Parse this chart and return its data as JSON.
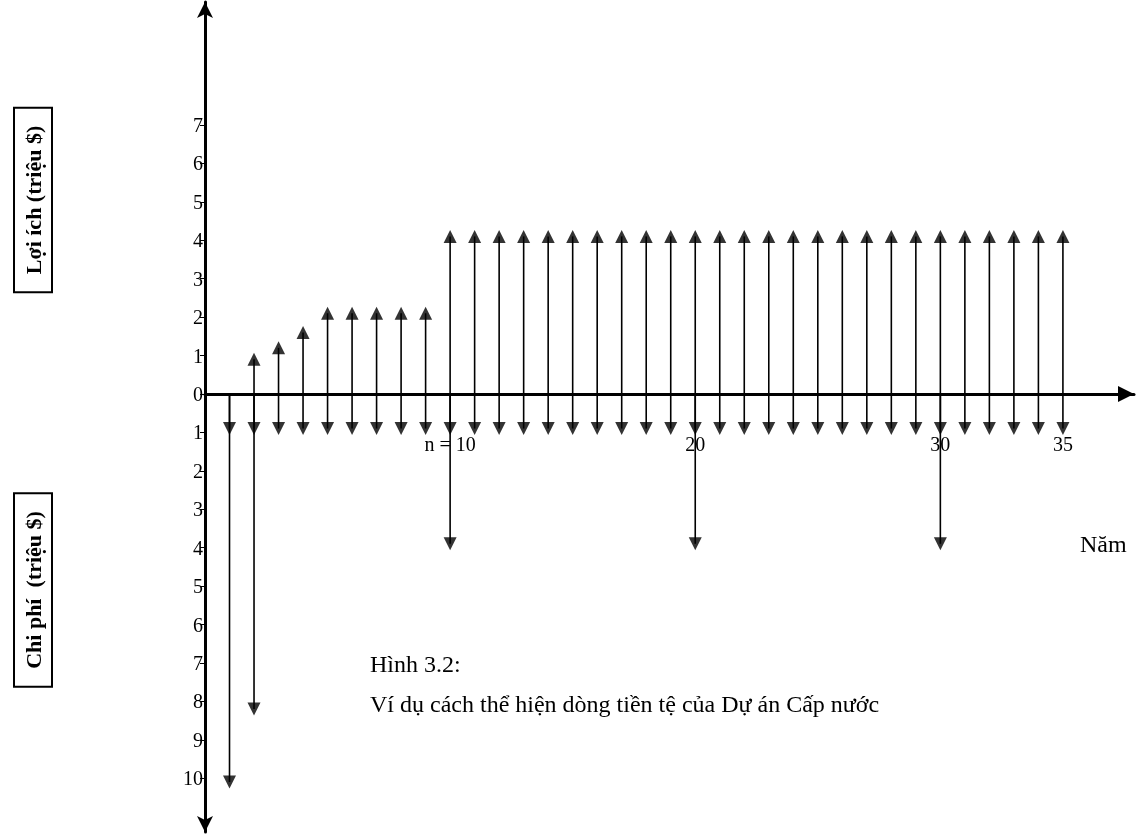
{
  "chart_data": {
    "type": "lollipop",
    "marker": "triangle",
    "xlabel": "Năm",
    "annotations": [
      "Lợi ích (triệu $)",
      "Chi phí  (triệu $)",
      "Hình 3.2:",
      "Ví dụ cách thể hiện dòng tiền tệ của Dự án Cấp nước"
    ],
    "xlim": [
      0,
      37.9
    ],
    "xticks": [
      {
        "value": 10,
        "label": "n = 10"
      },
      {
        "value": 20,
        "label": "20"
      },
      {
        "value": 30,
        "label": "30"
      },
      {
        "value": 35,
        "label": "35"
      }
    ],
    "ylim": [
      -11.4,
      10.2
    ],
    "yticks": [
      {
        "value": -10,
        "label": "10"
      },
      {
        "value": -9,
        "label": "9"
      },
      {
        "value": -8,
        "label": "8"
      },
      {
        "value": -7,
        "label": "7"
      },
      {
        "value": -6,
        "label": "6"
      },
      {
        "value": -5,
        "label": "5"
      },
      {
        "value": -4,
        "label": "4"
      },
      {
        "value": -3,
        "label": "3"
      },
      {
        "value": -2,
        "label": "2"
      },
      {
        "value": -1,
        "label": "1"
      },
      0,
      1,
      2,
      3,
      4,
      5,
      6,
      7
    ],
    "grid": false,
    "series": [
      {
        "color": "#000000",
        "x": [
          2,
          3,
          4,
          5,
          6,
          7,
          8,
          9,
          10,
          11,
          12,
          13,
          14,
          15,
          16,
          17,
          18,
          19,
          20,
          21,
          22,
          23,
          24,
          25,
          26,
          27,
          28,
          29,
          30,
          31,
          32,
          33,
          34,
          35
        ],
        "values": [
          0.9,
          1.2,
          1.6,
          2.1,
          2.1,
          2.1,
          2.1,
          2.1,
          4.1,
          4.1,
          4.1,
          4.1,
          4.1,
          4.1,
          4.1,
          4.1,
          4.1,
          4.1,
          4.1,
          4.1,
          4.1,
          4.1,
          4.1,
          4.1,
          4.1,
          4.1,
          4.1,
          4.1,
          4.1,
          4.1,
          4.1,
          4.1,
          4.1,
          4.1
        ]
      },
      {
        "color": "#000000",
        "x": [
          1,
          2,
          3,
          4,
          5,
          6,
          7,
          8,
          9,
          10,
          11,
          12,
          13,
          14,
          15,
          16,
          17,
          18,
          19,
          20,
          21,
          22,
          23,
          24,
          25,
          26,
          27,
          28,
          29,
          30,
          31,
          32,
          33,
          34,
          35
        ],
        "values": [
          -0.9,
          -0.9,
          -0.9,
          -0.9,
          -0.9,
          -0.9,
          -0.9,
          -0.9,
          -0.9,
          -0.9,
          -0.9,
          -0.9,
          -0.9,
          -0.9,
          -0.9,
          -0.9,
          -0.9,
          -0.9,
          -0.9,
          -0.9,
          -0.9,
          -0.9,
          -0.9,
          -0.9,
          -0.9,
          -0.9,
          -0.9,
          -0.9,
          -0.9,
          -0.9,
          -0.9,
          -0.9,
          -0.9,
          -0.9,
          -0.9
        ]
      },
      {
        "color": "#000000",
        "x": [
          1,
          2,
          10,
          20,
          30
        ],
        "values": [
          -10.1,
          -8.2,
          -3.9,
          -3.9,
          -3.9
        ]
      }
    ]
  }
}
